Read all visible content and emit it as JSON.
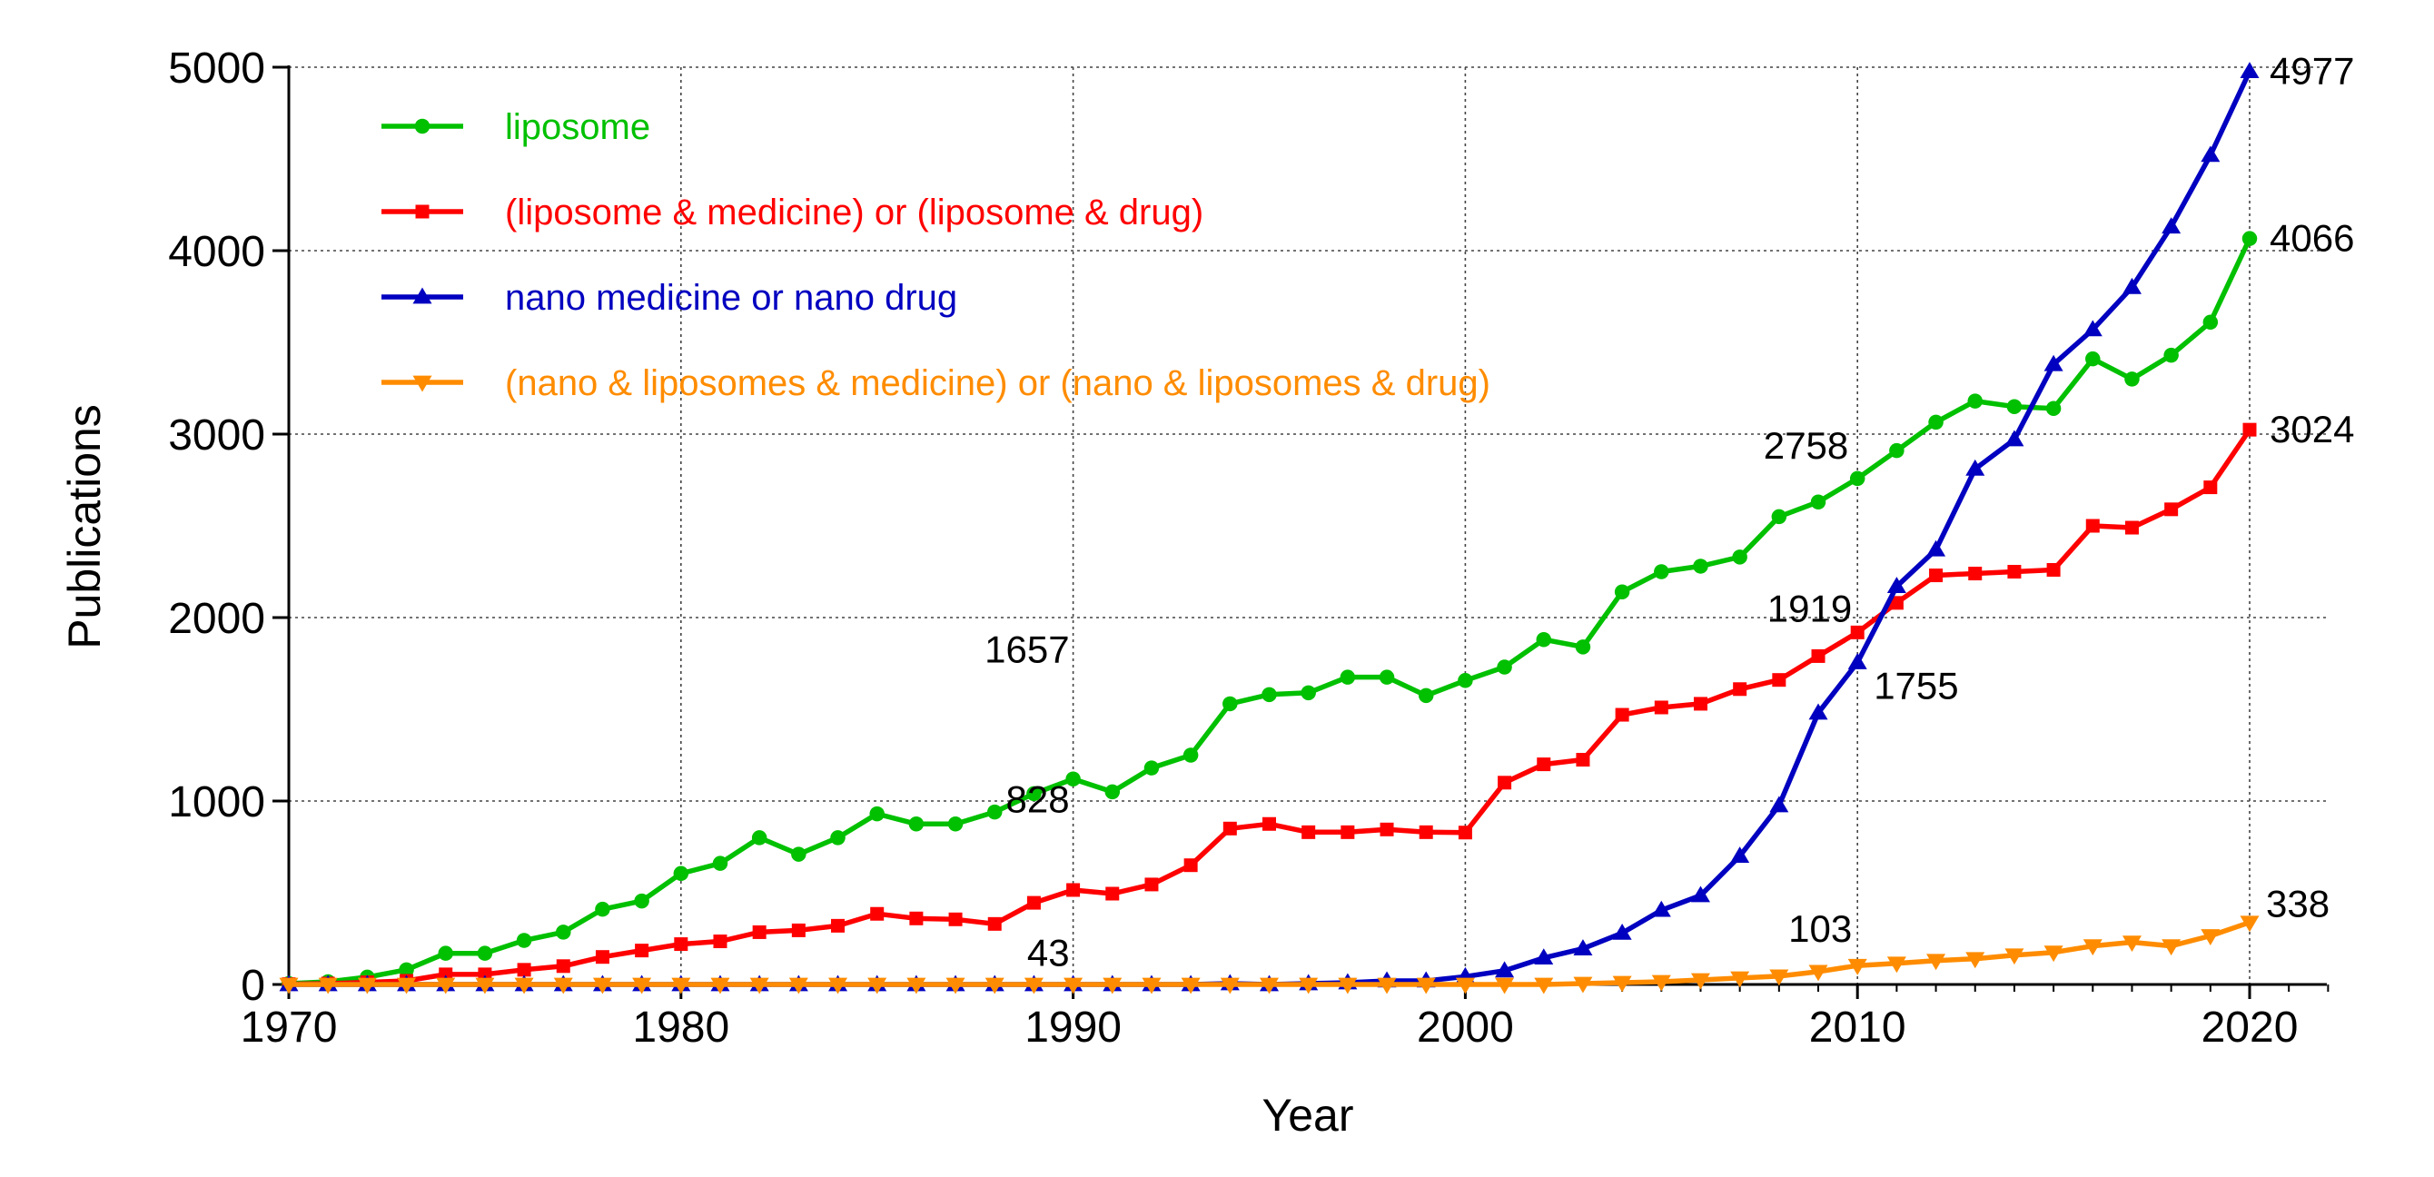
{
  "chart_data": {
    "type": "line",
    "xlabel": "Year",
    "ylabel": "Publications",
    "xlim": [
      1970,
      2022
    ],
    "ylim": [
      0,
      5000
    ],
    "xticks": [
      1970,
      1980,
      1990,
      2000,
      2010,
      2020
    ],
    "yticks": [
      0,
      1000,
      2000,
      3000,
      4000,
      5000
    ],
    "grid": true,
    "legend_position": "top-left",
    "x": [
      1970,
      1971,
      1972,
      1973,
      1974,
      1975,
      1976,
      1977,
      1978,
      1979,
      1980,
      1981,
      1982,
      1983,
      1984,
      1985,
      1986,
      1987,
      1988,
      1989,
      1990,
      1991,
      1992,
      1993,
      1994,
      1995,
      1996,
      1997,
      1998,
      1999,
      2000,
      2001,
      2002,
      2003,
      2004,
      2005,
      2006,
      2007,
      2008,
      2009,
      2010,
      2011,
      2012,
      2013,
      2014,
      2015,
      2016,
      2017,
      2018,
      2019,
      2020
    ],
    "series": [
      {
        "name": "liposome",
        "color": "#00c000",
        "marker": "circle",
        "values": [
          5,
          15,
          40,
          80,
          170,
          170,
          240,
          285,
          410,
          455,
          605,
          660,
          800,
          710,
          800,
          930,
          875,
          875,
          940,
          1040,
          1120,
          1050,
          1180,
          1250,
          1530,
          1580,
          1590,
          1675,
          1675,
          1575,
          1657,
          1730,
          1880,
          1840,
          2140,
          2250,
          2280,
          2330,
          2550,
          2630,
          2758,
          2910,
          3065,
          3180,
          3150,
          3140,
          3410,
          3300,
          3430,
          3610,
          4066
        ]
      },
      {
        "name": "(liposome & medicine) or (liposome & drug)",
        "color": "#ff0000",
        "marker": "square",
        "values": [
          2,
          5,
          12,
          20,
          55,
          55,
          80,
          100,
          150,
          185,
          220,
          235,
          285,
          295,
          320,
          385,
          360,
          355,
          330,
          445,
          515,
          495,
          545,
          650,
          850,
          875,
          830,
          830,
          845,
          830,
          828,
          1100,
          1200,
          1225,
          1470,
          1510,
          1530,
          1610,
          1660,
          1790,
          1919,
          2080,
          2230,
          2240,
          2250,
          2260,
          2500,
          2490,
          2590,
          2710,
          3024
        ]
      },
      {
        "name": "nano medicine or nano drug",
        "color": "#0000c0",
        "marker": "triangle-up",
        "values": [
          0,
          0,
          0,
          0,
          0,
          0,
          0,
          0,
          0,
          0,
          0,
          0,
          0,
          0,
          0,
          0,
          0,
          0,
          0,
          0,
          0,
          0,
          0,
          0,
          5,
          0,
          5,
          10,
          20,
          20,
          43,
          75,
          145,
          195,
          280,
          405,
          485,
          700,
          975,
          1480,
          1755,
          2170,
          2370,
          2810,
          2970,
          3380,
          3570,
          3800,
          4130,
          4520,
          4977
        ]
      },
      {
        "name": "(nano & liposomes & medicine) or (nano & liposomes & drug)",
        "color": "#ff8c00",
        "marker": "triangle-down",
        "values": [
          0,
          0,
          0,
          0,
          0,
          0,
          0,
          0,
          0,
          0,
          0,
          0,
          0,
          0,
          0,
          0,
          0,
          0,
          0,
          0,
          0,
          0,
          0,
          0,
          0,
          0,
          0,
          0,
          0,
          0,
          0,
          0,
          0,
          5,
          10,
          15,
          25,
          35,
          45,
          70,
          103,
          115,
          130,
          140,
          160,
          175,
          210,
          230,
          210,
          265,
          338
        ]
      }
    ],
    "annotations": [
      {
        "text": "1657",
        "x": 1990,
        "y": 1657
      },
      {
        "text": "828",
        "x": 1990,
        "y": 828
      },
      {
        "text": "43",
        "x": 1990,
        "y": 43
      },
      {
        "text": "2758",
        "x": 2010,
        "y": 2758
      },
      {
        "text": "1919",
        "x": 2010,
        "y": 1919
      },
      {
        "text": "1755",
        "x": 2010,
        "y": 1755
      },
      {
        "text": "103",
        "x": 2010,
        "y": 103
      },
      {
        "text": "4977",
        "x": 2020,
        "y": 4977
      },
      {
        "text": "4066",
        "x": 2020,
        "y": 4066
      },
      {
        "text": "3024",
        "x": 2020,
        "y": 3024
      },
      {
        "text": "338",
        "x": 2020,
        "y": 338
      }
    ]
  }
}
